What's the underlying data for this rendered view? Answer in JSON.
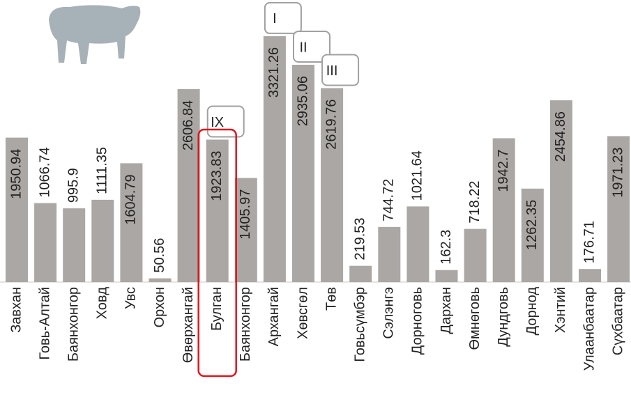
{
  "chart_data": {
    "type": "bar",
    "categories": [
      "Завхан",
      "Говь-Алтай",
      "Баянхонгор",
      "Ховд",
      "Увс",
      "Орхон",
      "Өвөрхангай",
      "Булган",
      "Баянхонгор",
      "Архангай",
      "Хөвсгөл",
      "Төв",
      "Говьсүмбэр",
      "Сэлэнгэ",
      "Дорноговь",
      "Дархан",
      "Өмнөговь",
      "Дундговь",
      "Дорнод",
      "Хэнтий",
      "Улаанбаатар",
      "Сүхбаатар"
    ],
    "values": [
      1950.94,
      1066.74,
      995.9,
      1111.35,
      1604.79,
      50.56,
      2606.84,
      1923.83,
      1405.97,
      3321.26,
      2935.06,
      2619.76,
      219.53,
      744.72,
      1021.64,
      162.3,
      718.22,
      1942.7,
      1262.35,
      2454.86,
      176.71,
      1971.23
    ],
    "color": "#aba7a4",
    "ylim": [
      0,
      3330
    ],
    "annotations": [
      {
        "text": "I",
        "category": "Архангай"
      },
      {
        "text": "II",
        "category": "Хөвсгөл"
      },
      {
        "text": "III",
        "category": "Төв"
      },
      {
        "text": "IX",
        "category": "Булган"
      }
    ],
    "highlight": "Булган",
    "highlight_color": "#e0141e"
  }
}
